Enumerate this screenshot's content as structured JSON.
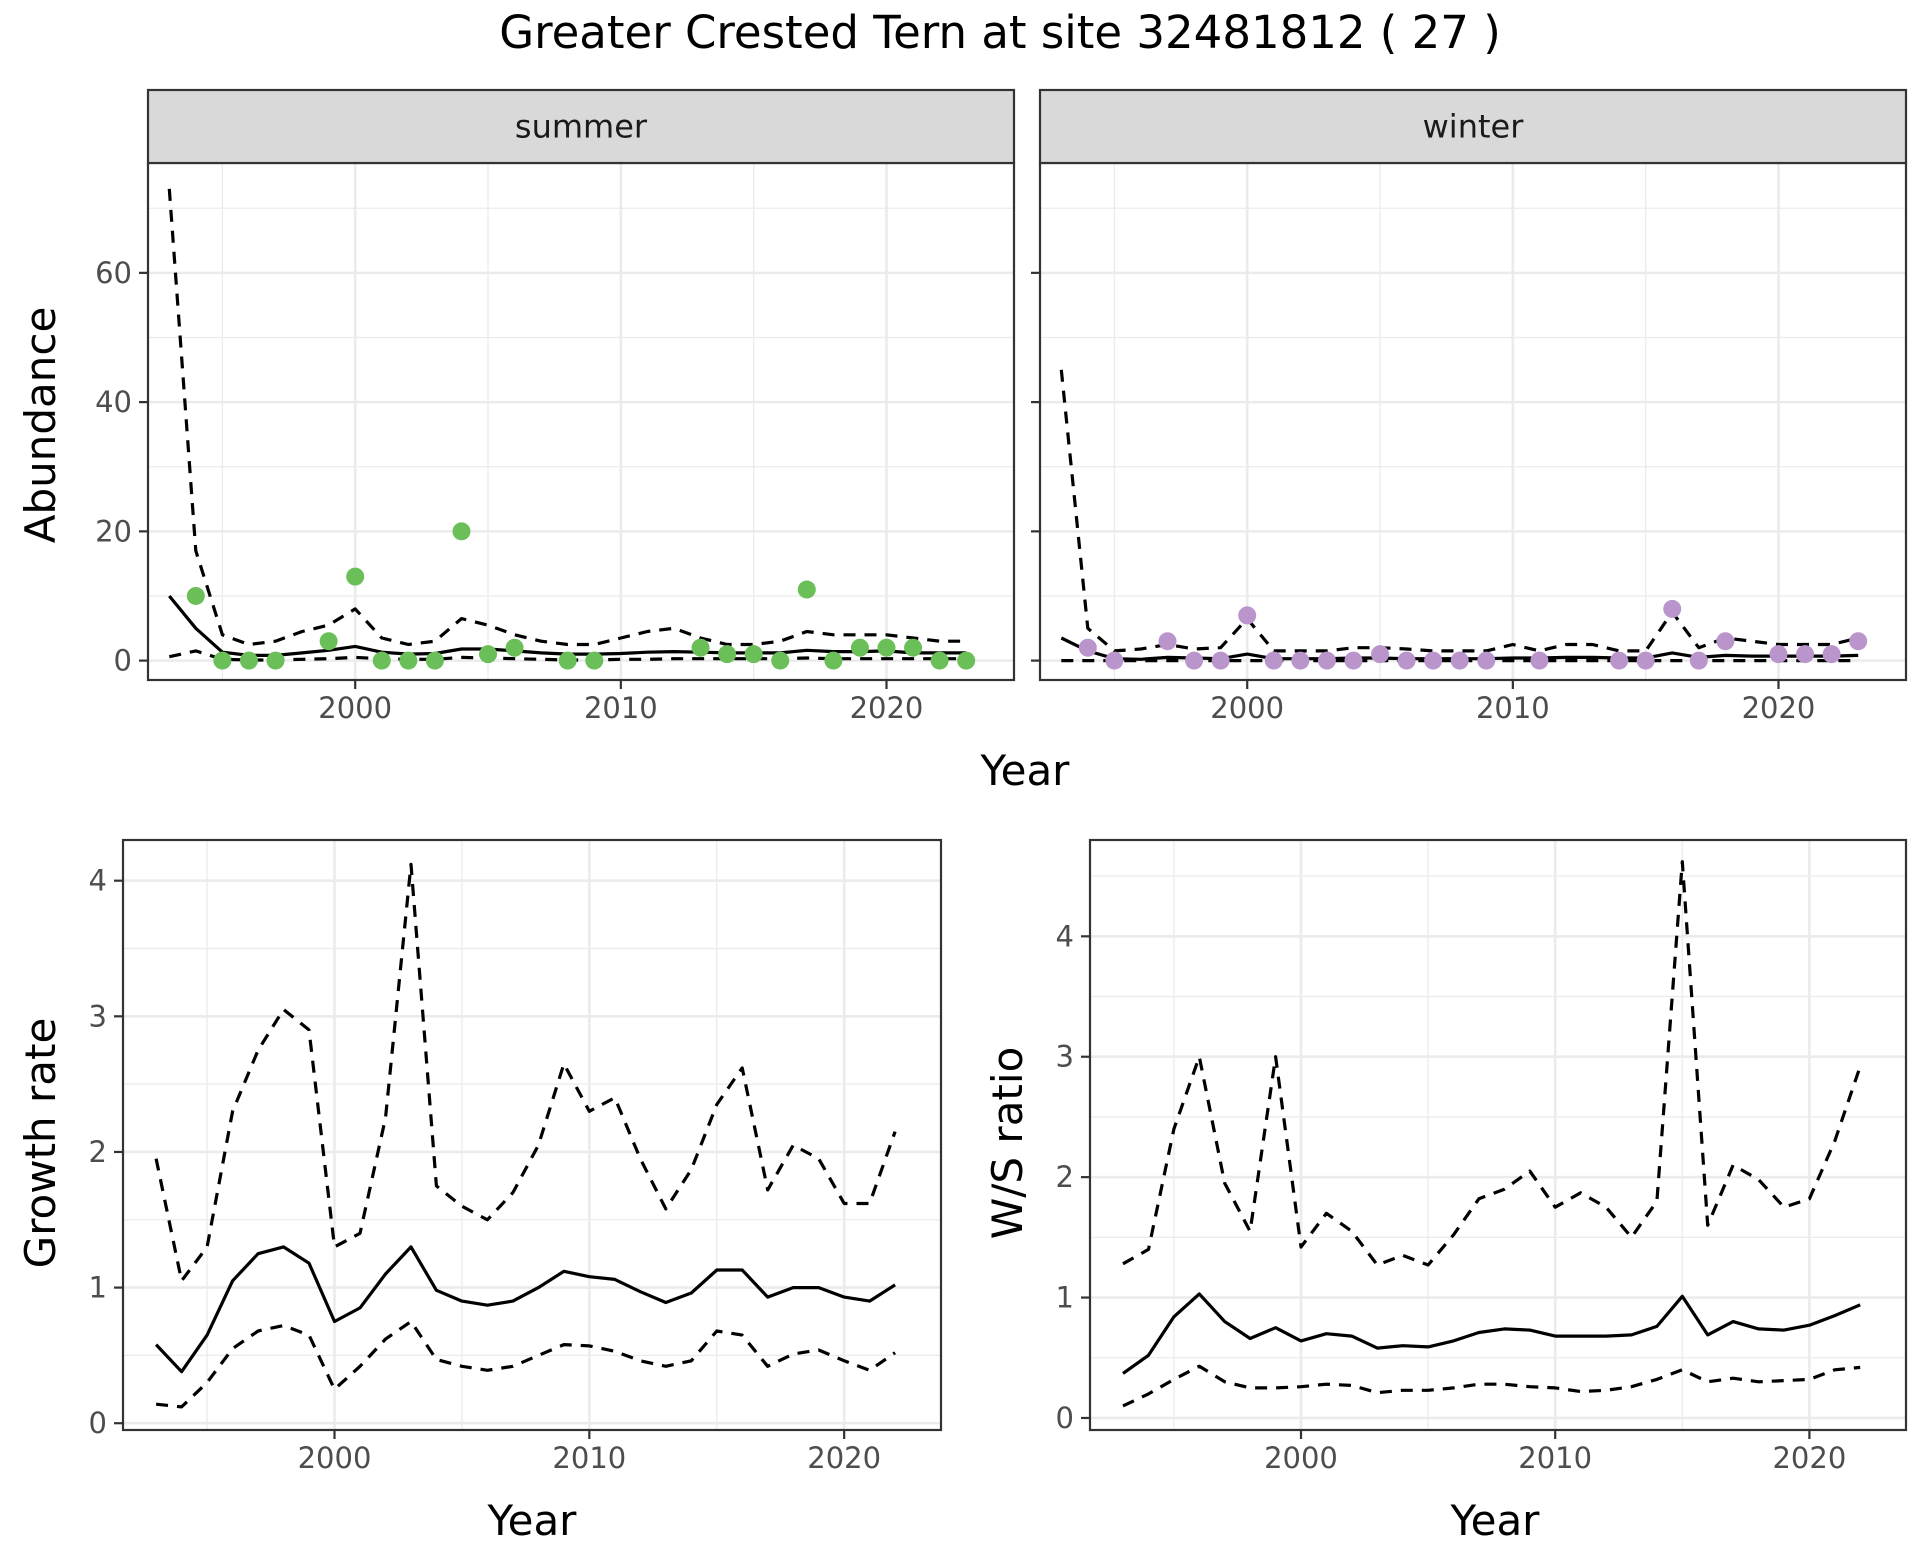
{
  "title": "Greater Crested Tern at site 32481812 ( 27 )",
  "colors": {
    "summer_points": "#6ABF59",
    "winter_points": "#B995CC",
    "lines": "#000000",
    "strip_fill": "#D9D9D9",
    "grid": "#EBEBEB"
  },
  "chart_data": [
    {
      "id": "summer",
      "type": "line",
      "strip": "summer",
      "ylabel": "Abundance",
      "xlabel": "Year",
      "xlim": [
        1992.2,
        2024.8
      ],
      "ylim": [
        -3,
        77
      ],
      "xticks": [
        2000,
        2010,
        2020
      ],
      "yticks": [
        0,
        20,
        40,
        60
      ],
      "points": {
        "x": [
          1994,
          1995,
          1996,
          1997,
          1999,
          2000,
          2001,
          2002,
          2003,
          2004,
          2005,
          2006,
          2008,
          2009,
          2013,
          2014,
          2015,
          2016,
          2017,
          2018,
          2019,
          2020,
          2021,
          2022,
          2023
        ],
        "y": [
          10,
          0,
          0,
          0,
          3,
          13,
          0,
          0,
          0,
          20,
          1,
          2,
          0,
          0,
          2,
          1,
          1,
          0,
          11,
          0,
          2,
          2,
          2,
          0,
          0
        ]
      },
      "series": [
        {
          "name": "",
          "style": "solid",
          "x": [
            1993,
            1994,
            1995,
            1996,
            1997,
            1998,
            1999,
            2000,
            2001,
            2002,
            2003,
            2004,
            2005,
            2006,
            2007,
            2008,
            2009,
            2010,
            2011,
            2012,
            2013,
            2014,
            2015,
            2016,
            2017,
            2018,
            2019,
            2020,
            2021,
            2022,
            2023
          ],
          "y": [
            10,
            5,
            1.3,
            0.8,
            0.8,
            1.2,
            1.6,
            2.2,
            1.3,
            1.0,
            1.1,
            1.8,
            1.8,
            1.5,
            1.2,
            1.0,
            1.0,
            1.1,
            1.3,
            1.4,
            1.3,
            1.2,
            1.2,
            1.2,
            1.6,
            1.4,
            1.4,
            1.5,
            1.2,
            1.2,
            1.2
          ]
        },
        {
          "name": "",
          "style": "dashed",
          "x": [
            1993,
            1994,
            1995,
            1996,
            1997,
            1998,
            1999,
            2000,
            2001,
            2002,
            2003,
            2004,
            2005,
            2006,
            2007,
            2008,
            2009,
            2010,
            2011,
            2012,
            2013,
            2014,
            2015,
            2016,
            2017,
            2018,
            2019,
            2020,
            2021,
            2022,
            2023
          ],
          "y": [
            73,
            17,
            4,
            2.5,
            3,
            4.5,
            5.5,
            8,
            3.5,
            2.5,
            3,
            6.5,
            5.5,
            4,
            3,
            2.5,
            2.5,
            3.5,
            4.5,
            5,
            3.5,
            2.5,
            2.5,
            3,
            4.5,
            4,
            4,
            4,
            3.5,
            3,
            3
          ]
        },
        {
          "name": "",
          "style": "dashed",
          "x": [
            1993,
            1994,
            1995,
            1996,
            1997,
            1998,
            1999,
            2000,
            2001,
            2002,
            2003,
            2004,
            2005,
            2006,
            2007,
            2008,
            2009,
            2010,
            2011,
            2012,
            2013,
            2014,
            2015,
            2016,
            2017,
            2018,
            2019,
            2020,
            2021,
            2022,
            2023
          ],
          "y": [
            0.6,
            1.5,
            0.2,
            0.1,
            0.1,
            0.2,
            0.3,
            0.5,
            0.3,
            0.2,
            0.2,
            0.5,
            0.4,
            0.3,
            0.2,
            0.1,
            0.1,
            0.2,
            0.2,
            0.3,
            0.3,
            0.3,
            0.3,
            0.3,
            0.4,
            0.3,
            0.3,
            0.3,
            0.3,
            0.3,
            0.3
          ]
        }
      ]
    },
    {
      "id": "winter",
      "type": "line",
      "strip": "winter",
      "ylabel": "",
      "xlabel": "Year",
      "xlim": [
        1992.2,
        2024.8
      ],
      "ylim": [
        -3,
        77
      ],
      "xticks": [
        2000,
        2010,
        2020
      ],
      "yticks": [
        0,
        20,
        40,
        60
      ],
      "points": {
        "x": [
          1994,
          1995,
          1997,
          1998,
          1999,
          2000,
          2001,
          2002,
          2003,
          2004,
          2005,
          2006,
          2007,
          2008,
          2009,
          2011,
          2014,
          2015,
          2016,
          2017,
          2018,
          2020,
          2021,
          2022,
          2023
        ],
        "y": [
          2,
          0,
          3,
          0,
          0,
          7,
          0,
          0,
          0,
          0,
          1,
          0,
          0,
          0,
          0,
          0,
          0,
          0,
          8,
          0,
          3,
          1,
          1,
          1,
          3
        ]
      },
      "series": [
        {
          "name": "",
          "style": "solid",
          "x": [
            1993,
            1994,
            1995,
            1996,
            1997,
            1998,
            1999,
            2000,
            2001,
            2002,
            2003,
            2004,
            2005,
            2006,
            2007,
            2008,
            2009,
            2010,
            2011,
            2012,
            2013,
            2014,
            2015,
            2016,
            2017,
            2018,
            2019,
            2020,
            2021,
            2022,
            2023
          ],
          "y": [
            3.5,
            1.5,
            0.3,
            0.2,
            0.5,
            0.4,
            0.3,
            1.0,
            0.3,
            0.3,
            0.3,
            0.4,
            0.4,
            0.3,
            0.3,
            0.3,
            0.3,
            0.4,
            0.4,
            0.5,
            0.5,
            0.4,
            0.4,
            1.2,
            0.5,
            0.8,
            0.7,
            0.7,
            0.7,
            0.7,
            0.8
          ]
        },
        {
          "name": "",
          "style": "dashed",
          "x": [
            1993,
            1994,
            1995,
            1996,
            1997,
            1998,
            1999,
            2000,
            2001,
            2002,
            2003,
            2004,
            2005,
            2006,
            2007,
            2008,
            2009,
            2010,
            2011,
            2012,
            2013,
            2014,
            2015,
            2016,
            2017,
            2018,
            2019,
            2020,
            2021,
            2022,
            2023
          ],
          "y": [
            45,
            5,
            1.5,
            1.8,
            2.5,
            1.8,
            2.0,
            6.5,
            1.5,
            1.5,
            1.5,
            2.0,
            2.0,
            1.8,
            1.5,
            1.5,
            1.5,
            2.5,
            1.5,
            2.5,
            2.5,
            1.5,
            1.5,
            7.5,
            2.0,
            3.5,
            3.0,
            2.5,
            2.5,
            2.5,
            3.5
          ]
        },
        {
          "name": "",
          "style": "dashed",
          "x": [
            1993,
            1994,
            1995,
            1996,
            1997,
            1998,
            1999,
            2000,
            2001,
            2002,
            2003,
            2004,
            2005,
            2006,
            2007,
            2008,
            2009,
            2010,
            2011,
            2012,
            2013,
            2014,
            2015,
            2016,
            2017,
            2018,
            2019,
            2020,
            2021,
            2022,
            2023
          ],
          "y": [
            0,
            0,
            0,
            0,
            0,
            0,
            0,
            0,
            0,
            0,
            0,
            0,
            0,
            0,
            0,
            0,
            0,
            0,
            0,
            0,
            0,
            0,
            0,
            0,
            0,
            0,
            0,
            0,
            0,
            0,
            0
          ]
        }
      ]
    },
    {
      "id": "growth",
      "type": "line",
      "strip": "",
      "ylabel": "Growth rate",
      "xlabel": "Year",
      "xlim": [
        1991.7,
        2023.8
      ],
      "ylim": [
        -0.05,
        4.3
      ],
      "xticks": [
        2000,
        2010,
        2020
      ],
      "yticks": [
        0,
        1,
        2,
        3,
        4
      ],
      "series": [
        {
          "name": "",
          "style": "solid",
          "x": [
            1993,
            1994,
            1995,
            1996,
            1997,
            1998,
            1999,
            2000,
            2001,
            2002,
            2003,
            2004,
            2005,
            2006,
            2007,
            2008,
            2009,
            2010,
            2011,
            2012,
            2013,
            2014,
            2015,
            2016,
            2017,
            2018,
            2019,
            2020,
            2021,
            2022
          ],
          "y": [
            0.58,
            0.38,
            0.65,
            1.05,
            1.25,
            1.3,
            1.18,
            0.75,
            0.85,
            1.1,
            1.3,
            0.98,
            0.9,
            0.87,
            0.9,
            1.0,
            1.12,
            1.08,
            1.06,
            0.97,
            0.89,
            0.96,
            1.13,
            1.13,
            0.93,
            1.0,
            1.0,
            0.93,
            0.9,
            1.02
          ]
        },
        {
          "name": "",
          "style": "dashed",
          "x": [
            1993,
            1994,
            1995,
            1996,
            1997,
            1998,
            1999,
            2000,
            2001,
            2002,
            2003,
            2004,
            2005,
            2006,
            2007,
            2008,
            2009,
            2010,
            2011,
            2012,
            2013,
            2014,
            2015,
            2016,
            2017,
            2018,
            2019,
            2020,
            2021,
            2022
          ],
          "y": [
            1.95,
            1.05,
            1.3,
            2.3,
            2.75,
            3.05,
            2.9,
            1.3,
            1.4,
            2.25,
            4.12,
            1.75,
            1.6,
            1.5,
            1.7,
            2.05,
            2.65,
            2.3,
            2.4,
            1.95,
            1.58,
            1.87,
            2.35,
            2.62,
            1.72,
            2.05,
            1.95,
            1.62,
            1.62,
            2.15
          ]
        },
        {
          "name": "",
          "style": "dashed",
          "x": [
            1993,
            1994,
            1995,
            1996,
            1997,
            1998,
            1999,
            2000,
            2001,
            2002,
            2003,
            2004,
            2005,
            2006,
            2007,
            2008,
            2009,
            2010,
            2011,
            2012,
            2013,
            2014,
            2015,
            2016,
            2017,
            2018,
            2019,
            2020,
            2021,
            2022
          ],
          "y": [
            0.14,
            0.12,
            0.3,
            0.55,
            0.68,
            0.72,
            0.65,
            0.25,
            0.42,
            0.62,
            0.75,
            0.47,
            0.42,
            0.39,
            0.42,
            0.5,
            0.58,
            0.57,
            0.53,
            0.46,
            0.42,
            0.46,
            0.68,
            0.65,
            0.42,
            0.51,
            0.54,
            0.46,
            0.39,
            0.52
          ]
        }
      ]
    },
    {
      "id": "ws",
      "type": "line",
      "strip": "",
      "ylabel": "W/S ratio",
      "xlabel": "Year",
      "xlim": [
        1991.7,
        2023.8
      ],
      "ylim": [
        -0.1,
        4.8
      ],
      "xticks": [
        2000,
        2010,
        2020
      ],
      "yticks": [
        0,
        1,
        2,
        3,
        4
      ],
      "series": [
        {
          "name": "",
          "style": "solid",
          "x": [
            1993,
            1994,
            1995,
            1996,
            1997,
            1998,
            1999,
            2000,
            2001,
            2002,
            2003,
            2004,
            2005,
            2006,
            2007,
            2008,
            2009,
            2010,
            2011,
            2012,
            2013,
            2014,
            2015,
            2016,
            2017,
            2018,
            2019,
            2020,
            2021,
            2022
          ],
          "y": [
            0.37,
            0.52,
            0.84,
            1.03,
            0.8,
            0.66,
            0.75,
            0.64,
            0.7,
            0.68,
            0.58,
            0.6,
            0.59,
            0.64,
            0.71,
            0.74,
            0.73,
            0.68,
            0.68,
            0.68,
            0.69,
            0.76,
            1.01,
            0.69,
            0.8,
            0.74,
            0.73,
            0.77,
            0.85,
            0.94
          ]
        },
        {
          "name": "",
          "style": "dashed",
          "x": [
            1993,
            1994,
            1995,
            1996,
            1997,
            1998,
            1999,
            2000,
            2001,
            2002,
            2003,
            2004,
            2005,
            2006,
            2007,
            2008,
            2009,
            2010,
            2011,
            2012,
            2013,
            2014,
            2015,
            2016,
            2017,
            2018,
            2019,
            2020,
            2021,
            2022
          ],
          "y": [
            1.28,
            1.4,
            2.4,
            3.0,
            1.95,
            1.55,
            3.0,
            1.42,
            1.7,
            1.55,
            1.27,
            1.35,
            1.27,
            1.52,
            1.82,
            1.9,
            2.05,
            1.75,
            1.87,
            1.75,
            1.5,
            1.8,
            4.62,
            1.6,
            2.1,
            1.98,
            1.75,
            1.82,
            2.3,
            2.92
          ]
        },
        {
          "name": "",
          "style": "dashed",
          "x": [
            1993,
            1994,
            1995,
            1996,
            1997,
            1998,
            1999,
            2000,
            2001,
            2002,
            2003,
            2004,
            2005,
            2006,
            2007,
            2008,
            2009,
            2010,
            2011,
            2012,
            2013,
            2014,
            2015,
            2016,
            2017,
            2018,
            2019,
            2020,
            2021,
            2022
          ],
          "y": [
            0.1,
            0.2,
            0.32,
            0.43,
            0.3,
            0.25,
            0.25,
            0.26,
            0.28,
            0.27,
            0.21,
            0.23,
            0.23,
            0.25,
            0.28,
            0.28,
            0.26,
            0.25,
            0.22,
            0.23,
            0.26,
            0.32,
            0.4,
            0.3,
            0.33,
            0.3,
            0.31,
            0.32,
            0.4,
            0.42
          ]
        }
      ]
    }
  ]
}
